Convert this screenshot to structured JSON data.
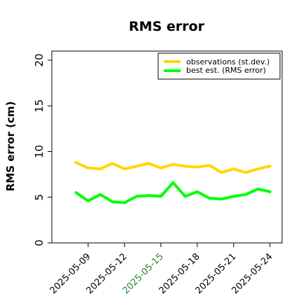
{
  "chart_data": {
    "type": "line",
    "title": "RMS error",
    "ylabel": "RMS error (cm)",
    "xlabel": "",
    "ylim": [
      0,
      21
    ],
    "xlim": [
      "2025-05-06",
      "2025-05-25"
    ],
    "y_ticks": [
      "0",
      "5",
      "10",
      "15",
      "20"
    ],
    "x_tick_labels": [
      {
        "label": "2025-05-09",
        "color": "#000000"
      },
      {
        "label": "2025-05-12",
        "color": "#000000"
      },
      {
        "label": "2025-05-15",
        "color": "#228b22"
      },
      {
        "label": "2025-05-18",
        "color": "#000000"
      },
      {
        "label": "2025-05-21",
        "color": "#000000"
      },
      {
        "label": "2025-05-24",
        "color": "#000000"
      }
    ],
    "x": [
      "2025-05-08",
      "2025-05-09",
      "2025-05-10",
      "2025-05-11",
      "2025-05-12",
      "2025-05-13",
      "2025-05-14",
      "2025-05-15",
      "2025-05-16",
      "2025-05-17",
      "2025-05-18",
      "2025-05-19",
      "2025-05-20",
      "2025-05-21",
      "2025-05-22",
      "2025-05-23",
      "2025-05-24"
    ],
    "series": [
      {
        "name": "observations (st.dev.)",
        "color": "#ffd700",
        "values": [
          8.8,
          8.2,
          8.1,
          8.7,
          8.1,
          8.4,
          8.7,
          8.2,
          8.6,
          8.4,
          8.3,
          8.5,
          7.7,
          8.1,
          7.7,
          8.1,
          8.4
        ]
      },
      {
        "name": "best est. (RMS error)",
        "color": "#00ff00",
        "values": [
          5.5,
          4.6,
          5.3,
          4.5,
          4.4,
          5.1,
          5.2,
          5.1,
          6.6,
          5.1,
          5.6,
          4.9,
          4.8,
          5.1,
          5.3,
          5.9,
          5.6
        ]
      }
    ],
    "legend_position": "top-right",
    "grid": false
  }
}
